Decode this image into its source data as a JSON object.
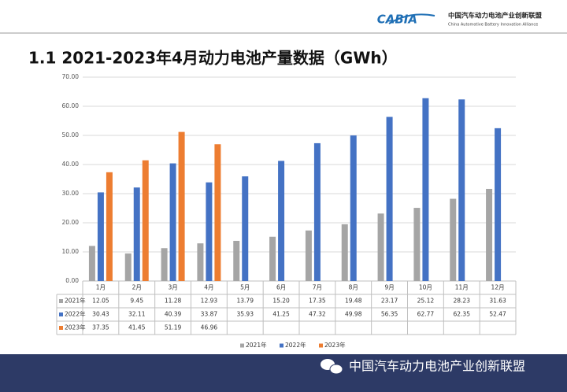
{
  "header": {
    "logo": "CABIA",
    "org_cn": "中国汽车动力电池产业创新联盟",
    "org_en": "China Automotive Battery Innovation Alliance"
  },
  "footer": {
    "text": "中国汽车动力电池产业创新联盟"
  },
  "chart_data": {
    "type": "bar",
    "title": "1.1 2021-2023年4月动力电池产量数据（GWh）",
    "categories": [
      "1月",
      "2月",
      "3月",
      "4月",
      "5月",
      "6月",
      "7月",
      "8月",
      "9月",
      "10月",
      "11月",
      "12月"
    ],
    "series": [
      {
        "name": "2021年",
        "color": "#a5a5a5",
        "values": [
          12.05,
          9.45,
          11.28,
          12.93,
          13.79,
          15.2,
          17.35,
          19.48,
          23.17,
          25.12,
          28.23,
          31.63
        ],
        "value_labels": [
          "12.05",
          "9.45",
          "11.28",
          "12.93",
          "13.79",
          "15.20",
          "17.35",
          "19.48",
          "23.17",
          "25.12",
          "28.23",
          "31.63"
        ]
      },
      {
        "name": "2022年",
        "color": "#4472c4",
        "values": [
          30.43,
          32.11,
          40.39,
          33.87,
          35.93,
          41.25,
          47.32,
          49.98,
          56.35,
          62.77,
          62.35,
          52.47
        ],
        "value_labels": [
          "30.43",
          "32.11",
          "40.39",
          "33.87",
          "35.93",
          "41.25",
          "47.32",
          "49.98",
          "56.35",
          "62.77",
          "62.35",
          "52.47"
        ]
      },
      {
        "name": "2023年",
        "color": "#ed7d31",
        "values": [
          37.35,
          41.45,
          51.19,
          46.96,
          null,
          null,
          null,
          null,
          null,
          null,
          null,
          null
        ],
        "value_labels": [
          "37.35",
          "41.45",
          "51.19",
          "46.96",
          null,
          null,
          null,
          null,
          null,
          null,
          null,
          null
        ]
      }
    ],
    "ylim": [
      0,
      70
    ],
    "yticks": [
      {
        "value": 0,
        "label": "0.00"
      },
      {
        "value": 10,
        "label": "10.00"
      },
      {
        "value": 20,
        "label": "20.00"
      },
      {
        "value": 30,
        "label": "30.00"
      },
      {
        "value": 40,
        "label": "40.00"
      },
      {
        "value": 50,
        "label": "50.00"
      },
      {
        "value": 60,
        "label": "60.00"
      },
      {
        "value": 70,
        "label": "70.00"
      }
    ],
    "grid": true
  }
}
